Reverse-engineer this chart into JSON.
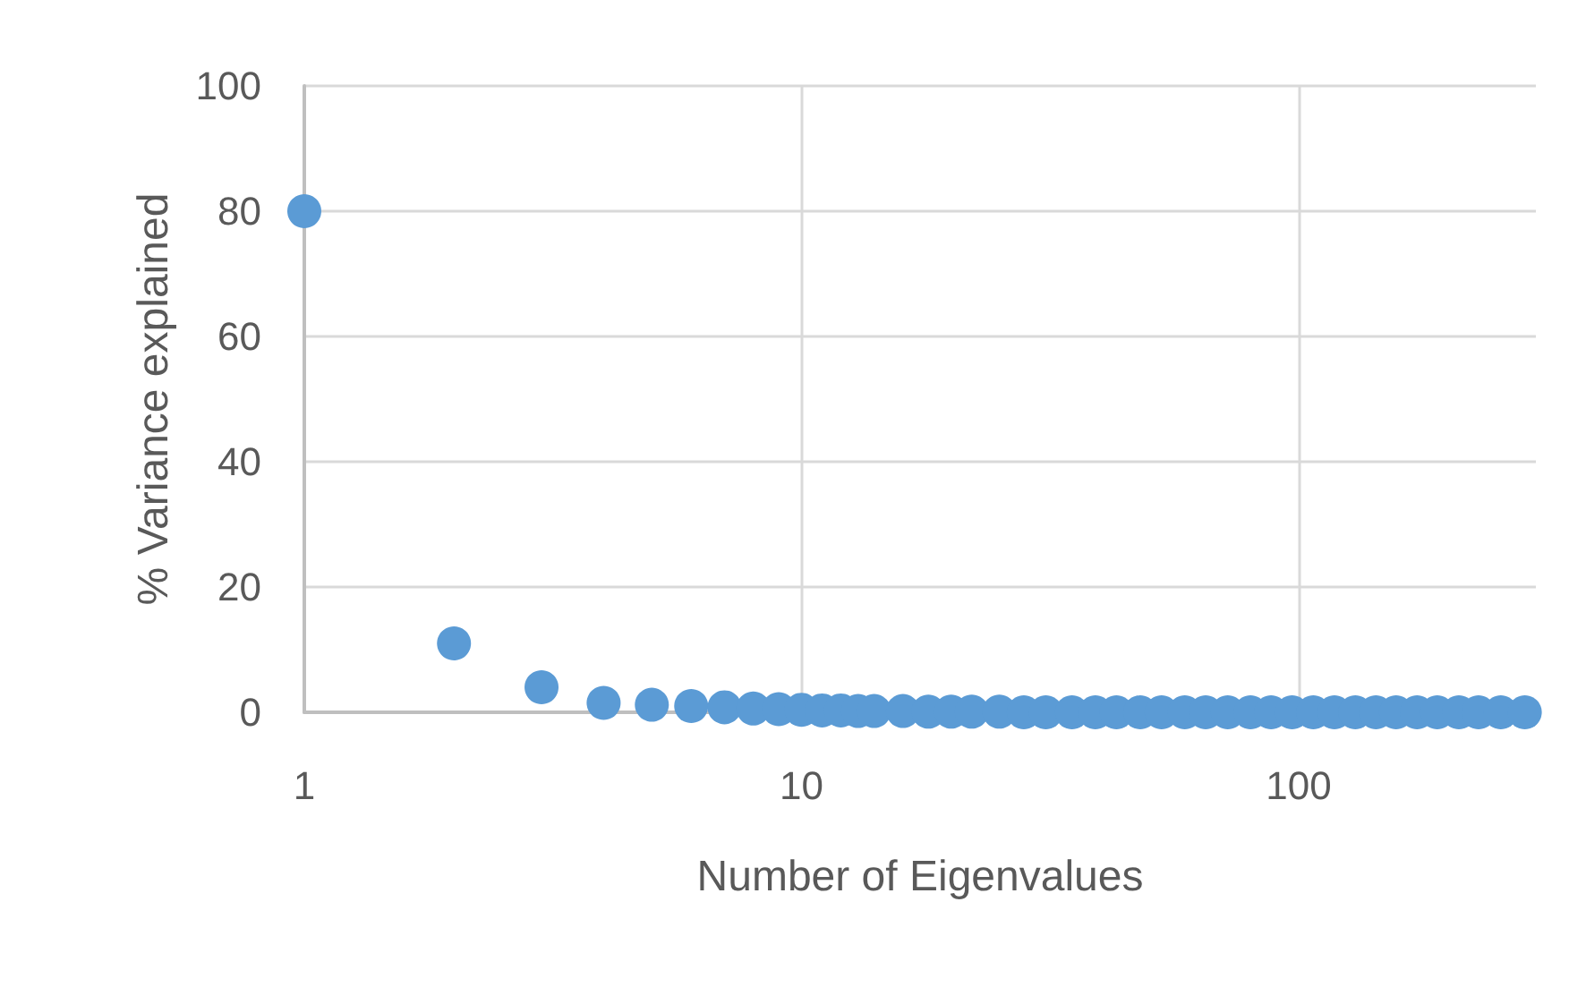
{
  "chart_data": {
    "type": "scatter",
    "xlabel": "Number of Eigenvalues",
    "ylabel": "% Variance explained",
    "log": "x",
    "xlim": [
      1,
      300
    ],
    "xticks": [
      1,
      10,
      100
    ],
    "ylim": [
      0,
      100
    ],
    "yticks": [
      0,
      20,
      40,
      60,
      80,
      100
    ],
    "grid": true,
    "marker": "circle",
    "series": [
      {
        "color": "#5b9bd5",
        "x": [
          1,
          2,
          3,
          4,
          5,
          6,
          7,
          8,
          9,
          10,
          11,
          12,
          13,
          14,
          16,
          18,
          20,
          22,
          25,
          28,
          31,
          35,
          39,
          43,
          48,
          53,
          59,
          65,
          72,
          80,
          88,
          97,
          107,
          118,
          130,
          143,
          157,
          173,
          190,
          210,
          230,
          255,
          285
        ],
        "values": [
          80,
          11,
          4,
          1.5,
          1.2,
          1,
          0.8,
          0.6,
          0.5,
          0.4,
          0.3,
          0.3,
          0.2,
          0.2,
          0.2,
          0.1,
          0.1,
          0.1,
          0.1,
          0,
          0,
          0,
          0,
          0,
          0,
          0,
          0,
          0,
          0,
          0,
          0,
          0,
          0,
          0,
          0,
          0,
          0,
          0,
          0,
          0,
          0,
          0,
          0
        ]
      }
    ]
  }
}
